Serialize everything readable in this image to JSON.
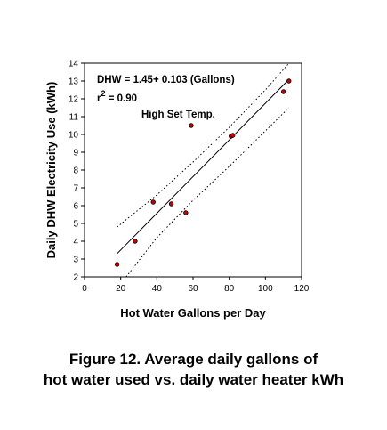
{
  "chart_data": {
    "type": "scatter",
    "xlabel": "Hot Water Gallons per Day",
    "ylabel": "Daily DHW Electricity Use (kWh)",
    "xlim": [
      0,
      120
    ],
    "ylim": [
      2,
      14
    ],
    "x_ticks": [
      0,
      20,
      40,
      60,
      80,
      100,
      120
    ],
    "y_ticks": [
      2,
      3,
      4,
      5,
      6,
      7,
      8,
      9,
      10,
      11,
      12,
      13,
      14
    ],
    "grid": false,
    "marker_color": "#cc0000",
    "points": [
      {
        "x": 18,
        "y": 2.7
      },
      {
        "x": 28,
        "y": 4.0
      },
      {
        "x": 38,
        "y": 6.2
      },
      {
        "x": 48,
        "y": 6.1
      },
      {
        "x": 56,
        "y": 5.6
      },
      {
        "x": 59,
        "y": 10.5
      },
      {
        "x": 81,
        "y": 9.9
      },
      {
        "x": 82,
        "y": 9.95
      },
      {
        "x": 110,
        "y": 12.4
      },
      {
        "x": 113,
        "y": 13.0
      }
    ],
    "fit": {
      "intercept": 1.45,
      "slope": 0.103,
      "x_range": [
        18,
        113
      ]
    },
    "confidence_upper": [
      [
        18,
        4.8
      ],
      [
        40,
        6.6
      ],
      [
        60,
        8.45
      ],
      [
        80,
        10.4
      ],
      [
        100,
        12.5
      ],
      [
        113,
        14.0
      ]
    ],
    "confidence_lower": [
      [
        23,
        2.0
      ],
      [
        40,
        4.2
      ],
      [
        60,
        6.3
      ],
      [
        80,
        8.2
      ],
      [
        100,
        10.2
      ],
      [
        113,
        11.5
      ]
    ],
    "annotations": {
      "equation": "DHW = 1.45+ 0.103 (Gallons)",
      "r2_prefix": "r",
      "r2_sup": "2",
      "r2_value": " = 0.90",
      "high_set_temp": "High Set Temp."
    }
  },
  "caption": {
    "line1": "Figure 12.  Average daily gallons of",
    "line2": "hot water used vs. daily water heater kWh"
  }
}
